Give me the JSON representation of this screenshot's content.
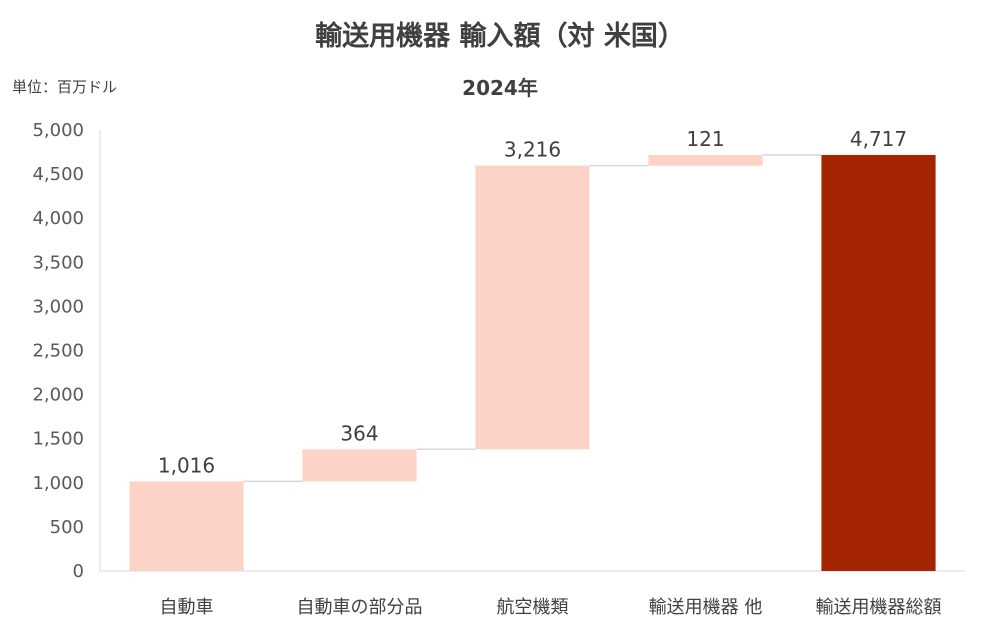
{
  "chart_data": {
    "type": "waterfall",
    "title": "輸送用機器 輸入額（対 米国）",
    "subtitle": "2024年",
    "unit_label": "単位：百万ドル",
    "categories": [
      "自動車",
      "自動車の部分品",
      "航空機類",
      "輸送用機器 他",
      "輸送用機器総額"
    ],
    "values": [
      1016,
      364,
      3216,
      121,
      4717
    ],
    "data_labels": [
      "1,016",
      "364",
      "3,216",
      "121",
      "4,717"
    ],
    "is_total": [
      false,
      false,
      false,
      false,
      true
    ],
    "ylim": [
      0,
      5000
    ],
    "yticks": [
      0,
      500,
      1000,
      1500,
      2000,
      2500,
      3000,
      3500,
      4000,
      4500,
      5000
    ],
    "ytick_labels": [
      "0",
      "500",
      "1,000",
      "1,500",
      "2,000",
      "2,500",
      "3,000",
      "3,500",
      "4,000",
      "4,500",
      "5,000"
    ],
    "grid": false,
    "colors": {
      "increase": "#fdd3c8",
      "total": "#a52402",
      "connector": "#d9d9d9",
      "axis": "#d9d9d9"
    }
  }
}
